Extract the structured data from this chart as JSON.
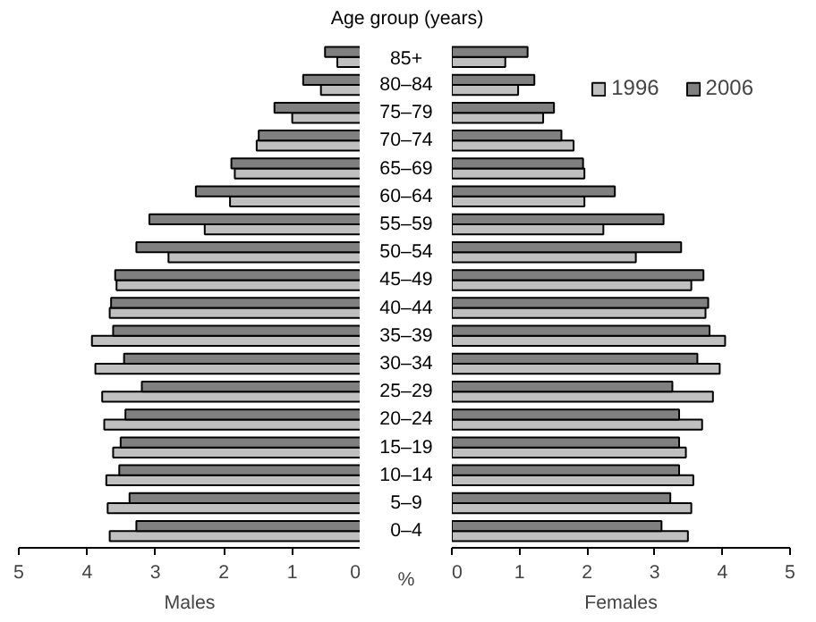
{
  "chart_data": [
    {
      "type": "bar",
      "orientation": "horizontal",
      "xlabel": "Males",
      "ylabel": "Age group (years)",
      "annotations": [
        "%"
      ],
      "categories": [
        "85+",
        "80–84",
        "75–79",
        "70–74",
        "65–69",
        "60–64",
        "55–59",
        "50–54",
        "45–49",
        "40–44",
        "35–39",
        "30–34",
        "25–29",
        "20–24",
        "15–19",
        "10–14",
        "5–9",
        "0–4"
      ],
      "series": [
        {
          "name": "1996",
          "color": "#c0c0c0",
          "values": [
            0.34,
            0.58,
            1.0,
            1.52,
            1.84,
            1.91,
            2.28,
            2.81,
            3.57,
            3.67,
            3.93,
            3.88,
            3.78,
            3.75,
            3.62,
            3.72,
            3.7,
            3.67
          ]
        },
        {
          "name": "2006",
          "color": "#808080",
          "values": [
            0.52,
            0.84,
            1.26,
            1.49,
            1.89,
            2.41,
            3.09,
            3.28,
            3.59,
            3.65,
            3.62,
            3.46,
            3.2,
            3.44,
            3.51,
            3.53,
            3.38,
            3.28
          ]
        }
      ],
      "xlim": [
        5,
        0
      ],
      "xticks": [
        0,
        1,
        2,
        3,
        4,
        5
      ],
      "grid": false,
      "legend": "top right"
    },
    {
      "type": "bar",
      "orientation": "horizontal",
      "xlabel": "Females",
      "tick_labels": "x",
      "categories": [
        null,
        null,
        null,
        null,
        null,
        null,
        null,
        null,
        null,
        null,
        null,
        null,
        null,
        null,
        null,
        null,
        null,
        null
      ],
      "series": [
        {
          "name": "1996",
          "color": "#c0c0c0",
          "values": [
            0.79,
            0.98,
            1.35,
            1.8,
            1.96,
            1.96,
            2.24,
            2.72,
            3.54,
            3.75,
            4.04,
            3.96,
            3.86,
            3.7,
            3.46,
            3.57,
            3.54,
            3.49
          ]
        },
        {
          "name": "2006",
          "color": "#808080",
          "values": [
            1.12,
            1.22,
            1.51,
            1.62,
            1.94,
            2.41,
            3.13,
            3.39,
            3.72,
            3.79,
            3.81,
            3.63,
            3.26,
            3.36,
            3.36,
            3.36,
            3.23,
            3.1
          ]
        }
      ],
      "xlim": [
        0,
        5
      ],
      "xticks": [
        0,
        1,
        2,
        3,
        4,
        5
      ],
      "grid": false
    }
  ]
}
